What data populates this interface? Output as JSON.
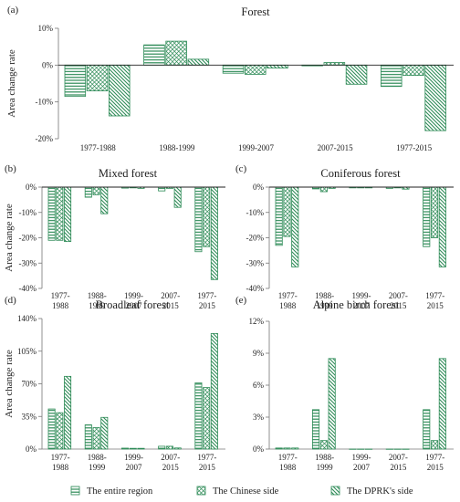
{
  "legend": {
    "items": [
      {
        "label": "The entire region",
        "pattern": "pat-h"
      },
      {
        "label": "The Chinese side",
        "pattern": "pat-x"
      },
      {
        "label": "The DPRK's side",
        "pattern": "pat-d"
      }
    ]
  },
  "colors": {
    "bar_stroke": "#2e8b57",
    "hatch": "#2e8b57"
  },
  "chart_data": [
    {
      "panel_label": "(a)",
      "type": "bar",
      "title": "Forest",
      "ylabel": "Area change rate",
      "ylim": [
        -20,
        10
      ],
      "ytick_values": [
        -20,
        -10,
        0,
        10
      ],
      "ytick_labels": [
        "-20%",
        "-10%",
        "0%",
        "10%"
      ],
      "categories": [
        "1977-1988",
        "1988-1999",
        "1999-2007",
        "2007-2015",
        "1977-2015"
      ],
      "category_labels": [
        [
          "1977-1988"
        ],
        [
          "1988-1999"
        ],
        [
          "1999-2007"
        ],
        [
          "2007-2015"
        ],
        [
          "1977-2015"
        ]
      ],
      "series": [
        {
          "name": "The entire region",
          "values": [
            -8.5,
            5.5,
            -2.2,
            -0.2,
            -5.8
          ]
        },
        {
          "name": "The Chinese side",
          "values": [
            -7.0,
            6.5,
            -2.5,
            0.7,
            -2.8
          ]
        },
        {
          "name": "The DPRK's side",
          "values": [
            -13.8,
            1.6,
            -0.8,
            -5.2,
            -17.8
          ]
        }
      ]
    },
    {
      "panel_label": "(b)",
      "type": "bar",
      "title": "Mixed forest",
      "ylabel": "Area change rate",
      "ylim": [
        -40,
        0
      ],
      "ytick_values": [
        -40,
        -30,
        -20,
        -10,
        0
      ],
      "ytick_labels": [
        "-40%",
        "-30%",
        "-20%",
        "-10%",
        "0%"
      ],
      "categories": [
        "1977-1988",
        "1988-1999",
        "1999-2007",
        "2007-2015",
        "1977-2015"
      ],
      "category_labels": [
        [
          "1977-",
          "1988"
        ],
        [
          "1988-",
          "1999"
        ],
        [
          "1999-",
          "2007"
        ],
        [
          "2007-",
          "2015"
        ],
        [
          "1977-",
          "2015"
        ]
      ],
      "series": [
        {
          "name": "The entire region",
          "values": [
            -21,
            -4,
            -0.4,
            -1.5,
            -25.5
          ]
        },
        {
          "name": "The Chinese side",
          "values": [
            -21,
            -3,
            -0.3,
            -0.5,
            -23.5
          ]
        },
        {
          "name": "The DPRK's side",
          "values": [
            -21.5,
            -10.5,
            -0.5,
            -8,
            -36.5
          ]
        }
      ]
    },
    {
      "panel_label": "(c)",
      "type": "bar",
      "title": "Coniferous forest",
      "ylabel": "",
      "ylim": [
        -40,
        0
      ],
      "ytick_values": [
        -40,
        -30,
        -20,
        -10,
        0
      ],
      "ytick_labels": [
        "-40%",
        "-30%",
        "-20%",
        "-10%",
        "0%"
      ],
      "categories": [
        "1977-1988",
        "1988-1999",
        "1999-2007",
        "2007-2015",
        "1977-2015"
      ],
      "category_labels": [
        [
          "1977-",
          "1988"
        ],
        [
          "1988-",
          "1999"
        ],
        [
          "1999-",
          "2007"
        ],
        [
          "2007-",
          "2015"
        ],
        [
          "1977-",
          "2015"
        ]
      ],
      "series": [
        {
          "name": "The entire region",
          "values": [
            -23,
            -0.7,
            -0.3,
            -0.5,
            -23.5
          ]
        },
        {
          "name": "The Chinese side",
          "values": [
            -19.5,
            -1.8,
            -0.3,
            -0.3,
            -20
          ]
        },
        {
          "name": "The DPRK's side",
          "values": [
            -31.5,
            -0.5,
            -0.3,
            -0.8,
            -31.5
          ]
        }
      ]
    },
    {
      "panel_label": "(d)",
      "type": "bar",
      "title": "Broadleaf forest",
      "ylabel": "Area change rate",
      "ylim": [
        0,
        140
      ],
      "ytick_values": [
        0,
        35,
        70,
        105,
        140
      ],
      "ytick_labels": [
        "0%",
        "35%",
        "70%",
        "105%",
        "140%"
      ],
      "categories": [
        "1977-1988",
        "1988-1999",
        "1999-2007",
        "2007-2015",
        "1977-2015"
      ],
      "category_labels": [
        [
          "1977-",
          "1988"
        ],
        [
          "1988-",
          "1999"
        ],
        [
          "1999-",
          "2007"
        ],
        [
          "2007-",
          "2015"
        ],
        [
          "1977-",
          "2015"
        ]
      ],
      "series": [
        {
          "name": "The entire region",
          "values": [
            43,
            26,
            1,
            3,
            71
          ]
        },
        {
          "name": "The Chinese side",
          "values": [
            39,
            23,
            0.8,
            3,
            66
          ]
        },
        {
          "name": "The DPRK's side",
          "values": [
            78,
            34,
            0.8,
            1.2,
            124
          ]
        }
      ]
    },
    {
      "panel_label": "(e)",
      "type": "bar",
      "title": "Alpine birch forest",
      "ylabel": "",
      "ylim": [
        0,
        12
      ],
      "ytick_values": [
        0,
        3,
        6,
        9,
        12
      ],
      "ytick_labels": [
        "0%",
        "3%",
        "6%",
        "9%",
        "12%"
      ],
      "categories": [
        "1977-1988",
        "1988-1999",
        "1999-2007",
        "2007-2015",
        "1977-2015"
      ],
      "category_labels": [
        [
          "1977-",
          "1988"
        ],
        [
          "1988-",
          "1999"
        ],
        [
          "1999-",
          "2007"
        ],
        [
          "2007-",
          "2015"
        ],
        [
          "1977-",
          "2015"
        ]
      ],
      "series": [
        {
          "name": "The entire region",
          "values": [
            0.1,
            3.7,
            0,
            0,
            3.7
          ]
        },
        {
          "name": "The Chinese side",
          "values": [
            0.1,
            0.8,
            0,
            0,
            0.8
          ]
        },
        {
          "name": "The DPRK's side",
          "values": [
            0.1,
            8.5,
            0,
            0,
            8.5
          ]
        }
      ]
    }
  ]
}
